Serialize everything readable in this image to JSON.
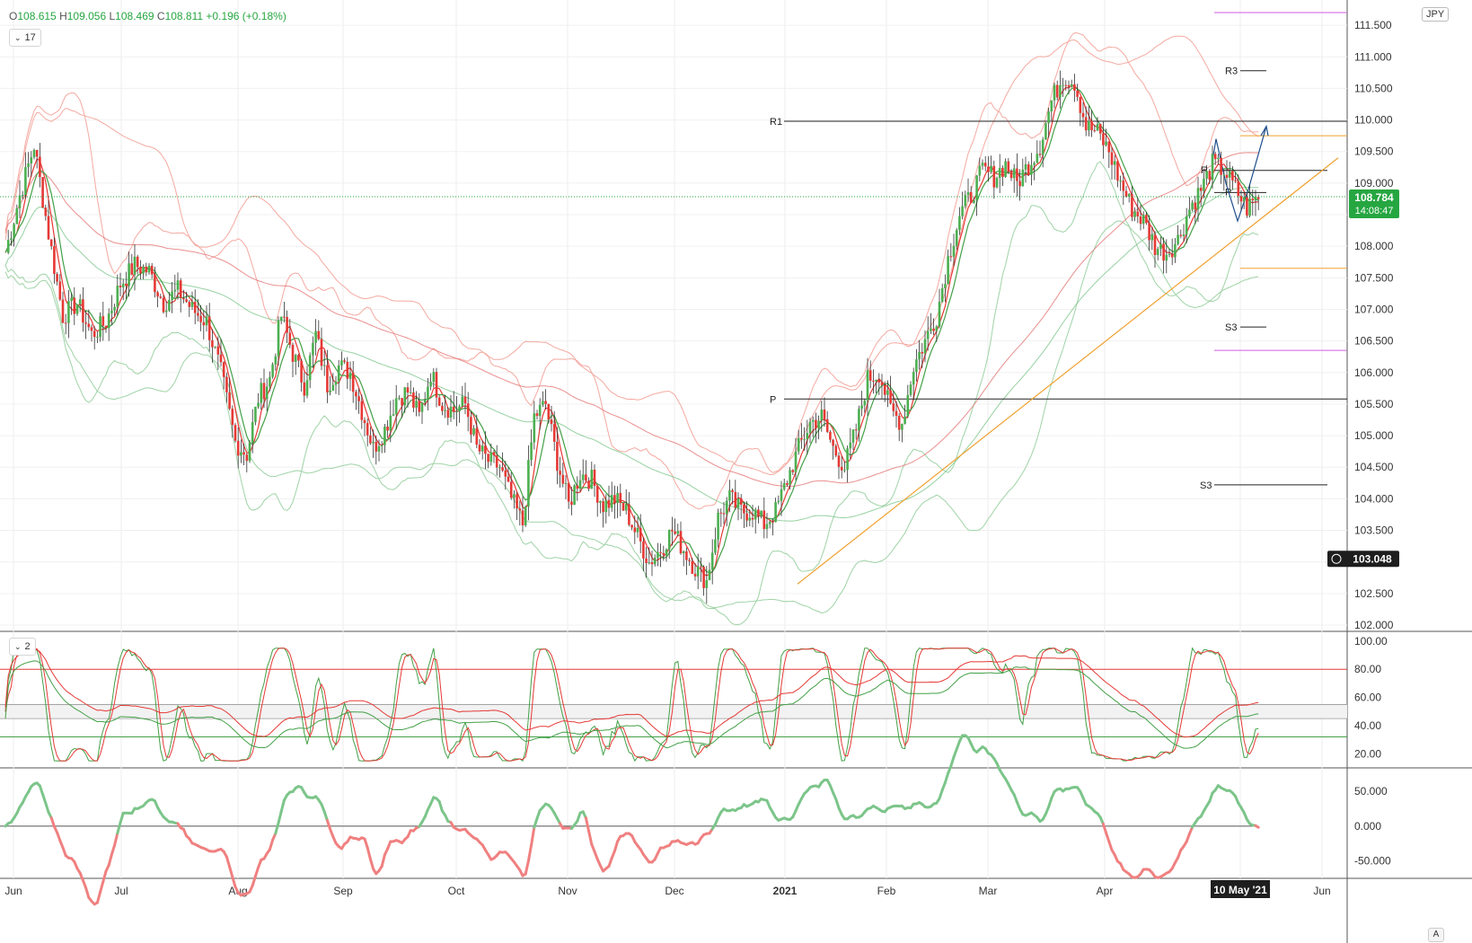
{
  "header": {
    "o_label": "O",
    "o": "108.615",
    "h_label": "H",
    "h": "109.056",
    "l_label": "L",
    "l": "108.469",
    "c_label": "C",
    "c": "108.811",
    "change": "+0.196 (+0.18%)"
  },
  "currency": "JPY",
  "auto_label": "A",
  "panes": [
    {
      "id": "main",
      "badge": "17"
    },
    {
      "id": "stoch",
      "badge": "2"
    }
  ],
  "price_badge": {
    "price": "108.784",
    "countdown": "14:08:47"
  },
  "cursor_badge": {
    "price": "103.048"
  },
  "chart_data": [
    {
      "type": "candlestick",
      "x_axis_labels": [
        "Jun",
        "Jul",
        "Aug",
        "Sep",
        "Oct",
        "Nov",
        "Dec",
        "2021",
        "Feb",
        "Mar",
        "Apr",
        "10 May '21",
        "Jun"
      ],
      "y_ticks": [
        "102.000",
        "102.500",
        "103.000",
        "103.500",
        "104.000",
        "104.500",
        "105.000",
        "105.500",
        "106.000",
        "106.500",
        "107.000",
        "107.500",
        "108.000",
        "108.500",
        "109.000",
        "109.500",
        "110.000",
        "110.500",
        "111.000",
        "111.500"
      ],
      "ylim": [
        101.9,
        111.9
      ],
      "last_price": 108.784,
      "pivot_labels": [
        "R1",
        "P",
        "R3",
        "S3",
        "S3",
        "P",
        "R"
      ],
      "pivot_levels": {
        "R1": 109.98,
        "P": 105.58,
        "R3": 110.78,
        "S3_upper": 106.72,
        "S3_lower": 104.22
      },
      "close_path": [
        [
          0,
          107.9
        ],
        [
          5,
          108.8
        ],
        [
          10,
          109.6
        ],
        [
          15,
          108.2
        ],
        [
          20,
          106.9
        ],
        [
          25,
          107.1
        ],
        [
          30,
          106.6
        ],
        [
          35,
          106.8
        ],
        [
          40,
          107.4
        ],
        [
          45,
          107.7
        ],
        [
          50,
          107.6
        ],
        [
          55,
          107.1
        ],
        [
          60,
          107.3
        ],
        [
          65,
          107.0
        ],
        [
          70,
          106.8
        ],
        [
          75,
          106.0
        ],
        [
          80,
          104.9
        ],
        [
          84,
          104.7
        ],
        [
          88,
          105.6
        ],
        [
          92,
          105.9
        ],
        [
          96,
          106.9
        ],
        [
          100,
          106.3
        ],
        [
          104,
          105.8
        ],
        [
          108,
          106.6
        ],
        [
          112,
          105.8
        ],
        [
          116,
          106.1
        ],
        [
          120,
          106.0
        ],
        [
          124,
          105.4
        ],
        [
          128,
          104.8
        ],
        [
          132,
          105.1
        ],
        [
          136,
          105.6
        ],
        [
          140,
          105.7
        ],
        [
          144,
          105.3
        ],
        [
          148,
          106.0
        ],
        [
          152,
          105.5
        ],
        [
          156,
          105.4
        ],
        [
          160,
          105.5
        ],
        [
          164,
          104.8
        ],
        [
          168,
          104.6
        ],
        [
          172,
          104.5
        ],
        [
          176,
          104.0
        ],
        [
          180,
          103.6
        ],
        [
          184,
          105.3
        ],
        [
          188,
          105.5
        ],
        [
          192,
          104.6
        ],
        [
          196,
          103.9
        ],
        [
          200,
          104.4
        ],
        [
          204,
          104.3
        ],
        [
          208,
          103.9
        ],
        [
          212,
          104.0
        ],
        [
          216,
          103.8
        ],
        [
          220,
          103.4
        ],
        [
          224,
          103.0
        ],
        [
          228,
          103.2
        ],
        [
          232,
          103.5
        ],
        [
          236,
          103.2
        ],
        [
          240,
          102.9
        ],
        [
          244,
          102.7
        ],
        [
          248,
          103.7
        ],
        [
          252,
          104.0
        ],
        [
          256,
          103.8
        ],
        [
          260,
          103.8
        ],
        [
          264,
          103.6
        ],
        [
          268,
          103.8
        ],
        [
          272,
          104.3
        ],
        [
          276,
          104.8
        ],
        [
          280,
          105.2
        ],
        [
          284,
          105.3
        ],
        [
          288,
          104.8
        ],
        [
          292,
          104.5
        ],
        [
          296,
          105.1
        ],
        [
          300,
          105.9
        ],
        [
          304,
          106.0
        ],
        [
          308,
          105.4
        ],
        [
          312,
          105.2
        ],
        [
          316,
          106.1
        ],
        [
          320,
          106.5
        ],
        [
          324,
          106.9
        ],
        [
          328,
          107.8
        ],
        [
          332,
          108.5
        ],
        [
          336,
          108.8
        ],
        [
          340,
          109.2
        ],
        [
          344,
          109.1
        ],
        [
          348,
          109.3
        ],
        [
          352,
          109.0
        ],
        [
          356,
          109.3
        ],
        [
          360,
          109.6
        ],
        [
          364,
          110.3
        ],
        [
          368,
          110.7
        ],
        [
          372,
          110.6
        ],
        [
          376,
          109.9
        ],
        [
          380,
          109.8
        ],
        [
          384,
          109.5
        ],
        [
          388,
          109.0
        ],
        [
          392,
          108.6
        ],
        [
          396,
          108.4
        ],
        [
          400,
          108.0
        ],
        [
          404,
          107.9
        ],
        [
          408,
          108.1
        ],
        [
          412,
          108.6
        ],
        [
          416,
          108.9
        ],
        [
          420,
          109.3
        ],
        [
          424,
          109.2
        ],
        [
          428,
          108.9
        ],
        [
          432,
          108.6
        ],
        [
          436,
          108.8
        ]
      ],
      "ma_bands_note": "",
      "bars_count": 436
    },
    {
      "type": "line",
      "series": [
        {
          "values_range": [
            15,
            100
          ]
        }
      ],
      "y_ticks": [
        "100.00",
        "80.00",
        "60.00",
        "40.00",
        "20.00"
      ],
      "ylim": [
        10,
        105
      ],
      "levels": [
        80,
        55,
        45,
        32
      ]
    },
    {
      "type": "area",
      "y_ticks": [
        "50.000",
        "0.000",
        "-50.000"
      ],
      "ylim": [
        -75,
        80
      ]
    }
  ]
}
